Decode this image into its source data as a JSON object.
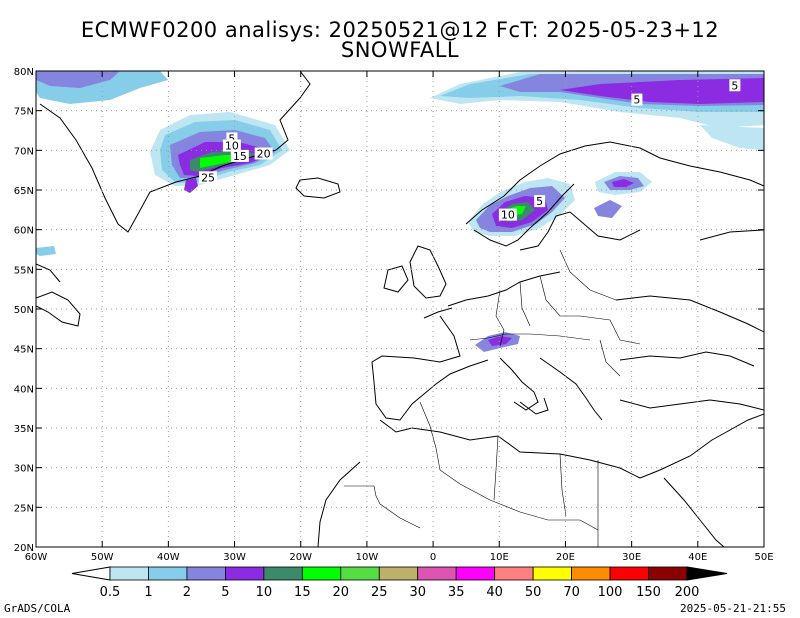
{
  "title": {
    "line1": "ECMWF0200 analisys: 20250521@12 FcT: 2025-05-23+12",
    "line2": "SNOWFALL"
  },
  "map": {
    "lon_range": [
      -60,
      50
    ],
    "lat_range": [
      20,
      80
    ],
    "lon_ticks": [
      "60W",
      "50W",
      "40W",
      "30W",
      "20W",
      "10W",
      "0",
      "10E",
      "20E",
      "30E",
      "40E",
      "50E"
    ],
    "lat_ticks": [
      "20N",
      "25N",
      "30N",
      "35N",
      "40N",
      "45N",
      "50N",
      "55N",
      "60N",
      "65N",
      "70N",
      "75N",
      "80N"
    ],
    "contour_labels": [
      {
        "text": "5",
        "lon": -30.4,
        "lat": 71.5
      },
      {
        "text": "10",
        "lon": -30.4,
        "lat": 70.6
      },
      {
        "text": "15",
        "lon": -29.2,
        "lat": 69.3
      },
      {
        "text": "20",
        "lon": -25.6,
        "lat": 69.6
      },
      {
        "text": "25",
        "lon": -34.0,
        "lat": 66.6
      },
      {
        "text": "10",
        "lon": 11.3,
        "lat": 61.9
      },
      {
        "text": "5",
        "lon": 16.1,
        "lat": 63.6
      },
      {
        "text": "5",
        "lon": 30.8,
        "lat": 76.4
      },
      {
        "text": "5",
        "lon": 45.6,
        "lat": 78.2
      }
    ]
  },
  "legend": {
    "levels": [
      "0.5",
      "1",
      "2",
      "5",
      "10",
      "15",
      "20",
      "25",
      "30",
      "35",
      "40",
      "50",
      "70",
      "100",
      "150",
      "200"
    ],
    "colors": [
      "#bde6f2",
      "#85cde8",
      "#8585e0",
      "#8b2be2",
      "#3b8b6b",
      "#00ff00",
      "#55dd44",
      "#bdb068",
      "#dd55b0",
      "#ff00ff",
      "#ff8080",
      "#ffff00",
      "#ff8c00",
      "#ff0000",
      "#8b0000"
    ]
  },
  "footer": {
    "left": "GrADS/COLA",
    "right": "2025-05-21-21:55"
  }
}
